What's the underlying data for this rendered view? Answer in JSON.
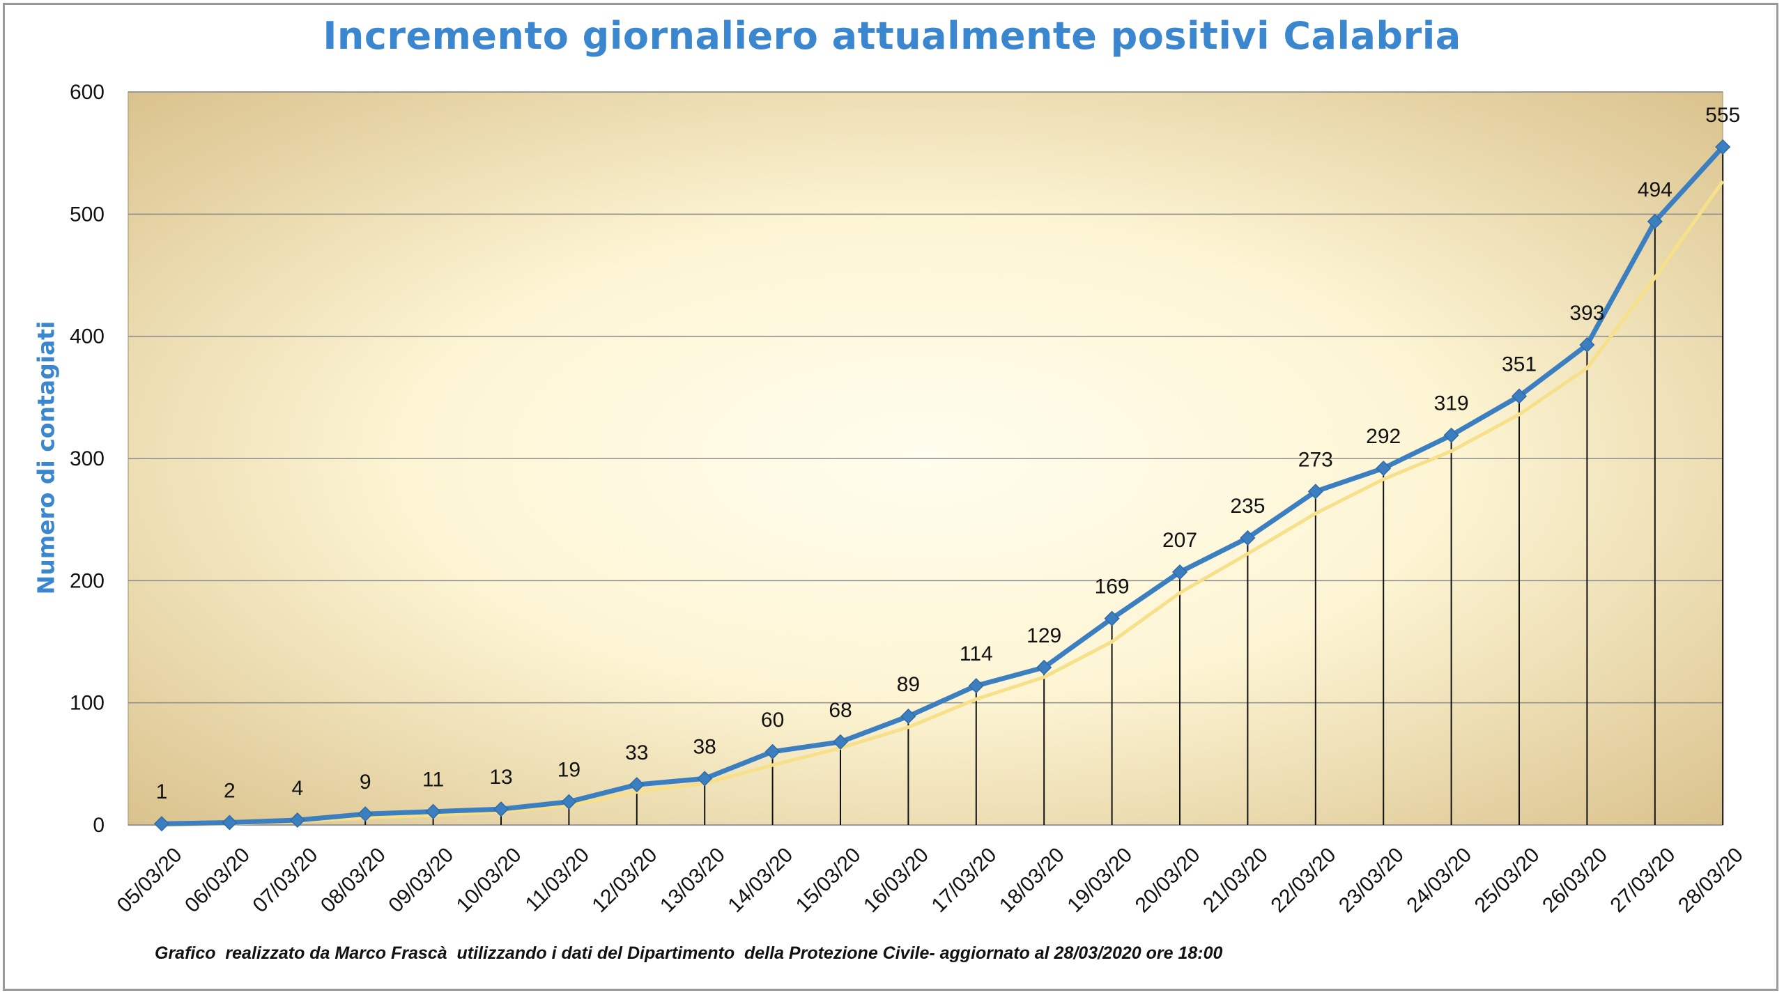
{
  "title": "Incremento giornaliero attualmente positivi Calabria",
  "credit": "Grafico  realizzato da Marco Frascà  utilizzando i dati del Dipartimento  della Protezione Civile- aggiornato al 28/03/2020 ore 18:00",
  "colors": {
    "series": "#3c7fc1",
    "trend": "#f7e08a",
    "title": "#3a86cf",
    "plot_center": "#fffdee",
    "plot_edge": "#d8c08a",
    "grid": "#8a8a8a"
  },
  "chart_data": {
    "type": "line",
    "title": "Incremento giornaliero attualmente positivi Calabria",
    "xlabel": "",
    "ylabel": "Numero di contagiati",
    "ylim": [
      0,
      600
    ],
    "yticks": [
      0,
      100,
      200,
      300,
      400,
      500,
      600
    ],
    "grid": true,
    "legend": "none",
    "categories": [
      "05/03/20",
      "06/03/20",
      "07/03/20",
      "08/03/20",
      "09/03/20",
      "10/03/20",
      "11/03/20",
      "12/03/20",
      "13/03/20",
      "14/03/20",
      "15/03/20",
      "16/03/20",
      "17/03/20",
      "18/03/20",
      "19/03/20",
      "20/03/20",
      "21/03/20",
      "22/03/20",
      "23/03/20",
      "24/03/20",
      "25/03/20",
      "26/03/20",
      "27/03/20",
      "28/03/20"
    ],
    "series": [
      {
        "values": [
          1,
          2,
          4,
          9,
          11,
          13,
          19,
          33,
          38,
          60,
          68,
          89,
          114,
          129,
          169,
          207,
          235,
          273,
          292,
          319,
          351,
          393,
          494,
          555
        ],
        "marker": "diamond",
        "data_labels": true,
        "drop_lines": true
      },
      {
        "style": "trend",
        "values": [
          0,
          1,
          3,
          6,
          8,
          11,
          16,
          27,
          34,
          49,
          63,
          80,
          103,
          121,
          150,
          190,
          222,
          255,
          283,
          306,
          336,
          374,
          448,
          527
        ]
      }
    ]
  }
}
